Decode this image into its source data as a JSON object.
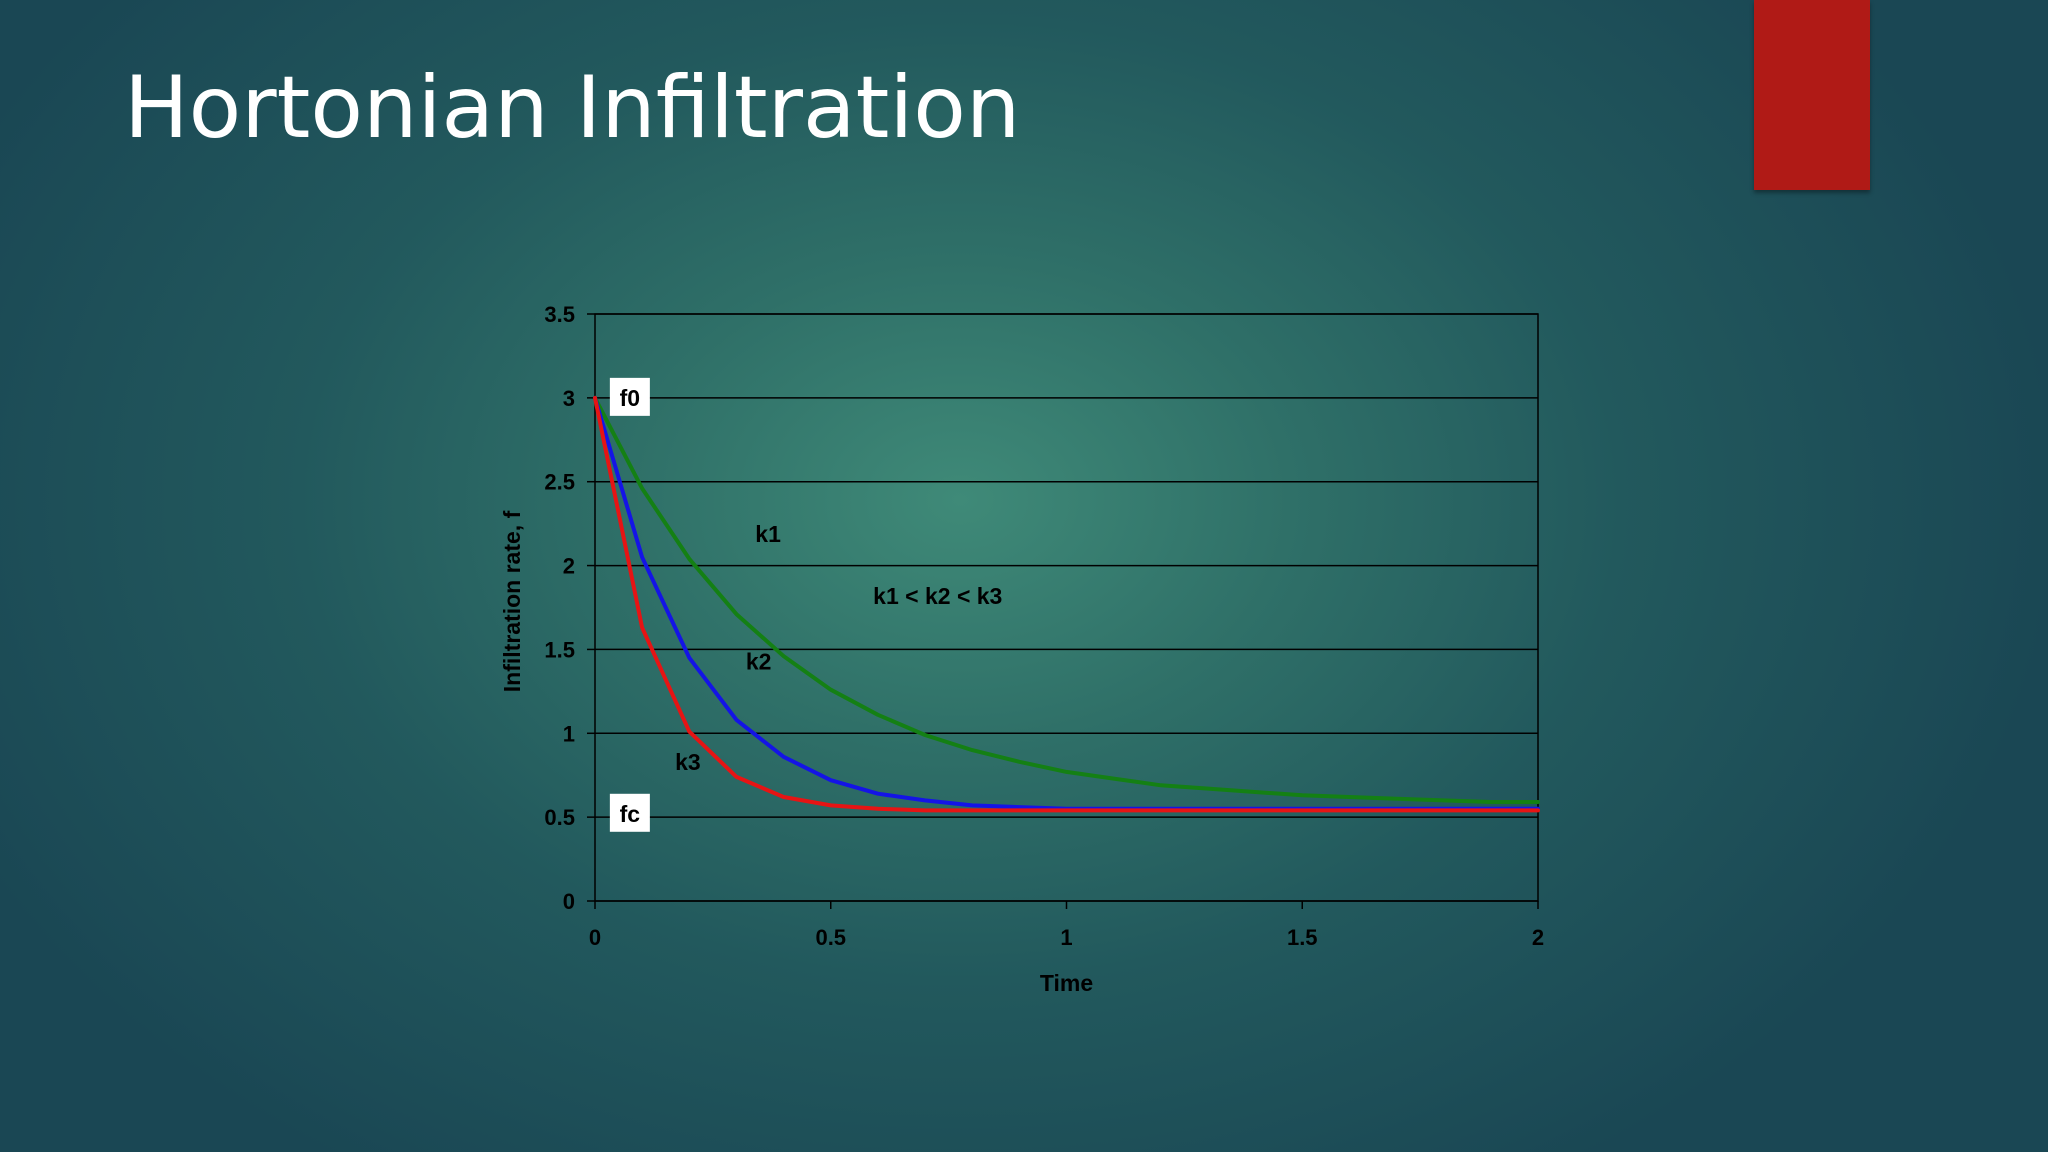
{
  "slide": {
    "title": "Hortonian Infiltration",
    "accent_color": "#b01a16"
  },
  "chart_data": {
    "type": "line",
    "xlabel": "Time",
    "ylabel": "Infiltration rate, f",
    "xlim": [
      0,
      2
    ],
    "ylim": [
      0,
      3.5
    ],
    "xticks": [
      "0",
      "0.5",
      "1",
      "1.5",
      "2"
    ],
    "yticks": [
      "0",
      "0.5",
      "1",
      "1.5",
      "2",
      "2.5",
      "3",
      "3.5"
    ],
    "grid": "horizontal",
    "legend": "none",
    "x": [
      0,
      0.1,
      0.2,
      0.3,
      0.4,
      0.5,
      0.6,
      0.7,
      0.8,
      0.9,
      1.0,
      1.1,
      1.2,
      1.3,
      1.4,
      1.5,
      1.6,
      1.7,
      1.8,
      1.9,
      2.0
    ],
    "series": [
      {
        "name": "k1",
        "color": "#148014",
        "values": [
          3.0,
          2.46,
          2.04,
          1.71,
          1.46,
          1.26,
          1.11,
          0.99,
          0.9,
          0.83,
          0.77,
          0.73,
          0.69,
          0.67,
          0.65,
          0.63,
          0.62,
          0.61,
          0.6,
          0.59,
          0.59
        ]
      },
      {
        "name": "k2",
        "color": "#1414e6",
        "values": [
          3.0,
          2.05,
          1.45,
          1.08,
          0.86,
          0.72,
          0.64,
          0.6,
          0.57,
          0.56,
          0.55,
          0.55,
          0.55,
          0.55,
          0.55,
          0.55,
          0.55,
          0.55,
          0.55,
          0.55,
          0.55
        ]
      },
      {
        "name": "k3",
        "color": "#e61414",
        "values": [
          3.0,
          1.63,
          1.01,
          0.74,
          0.62,
          0.57,
          0.55,
          0.54,
          0.54,
          0.54,
          0.54,
          0.54,
          0.54,
          0.54,
          0.54,
          0.54,
          0.54,
          0.54,
          0.54,
          0.54,
          0.54
        ]
      }
    ],
    "annotations": [
      {
        "text": "k1",
        "x": 0.34,
        "y": 2.14
      },
      {
        "text": "k2",
        "x": 0.32,
        "y": 1.38
      },
      {
        "text": "k3",
        "x": 0.17,
        "y": 0.78
      },
      {
        "text": "k1 < k2 < k3",
        "x": 0.59,
        "y": 1.77
      }
    ],
    "boxed_labels": [
      {
        "text": "f0",
        "x": 0.04,
        "y": 3.0
      },
      {
        "text": "fc",
        "x": 0.04,
        "y": 0.52
      }
    ]
  }
}
